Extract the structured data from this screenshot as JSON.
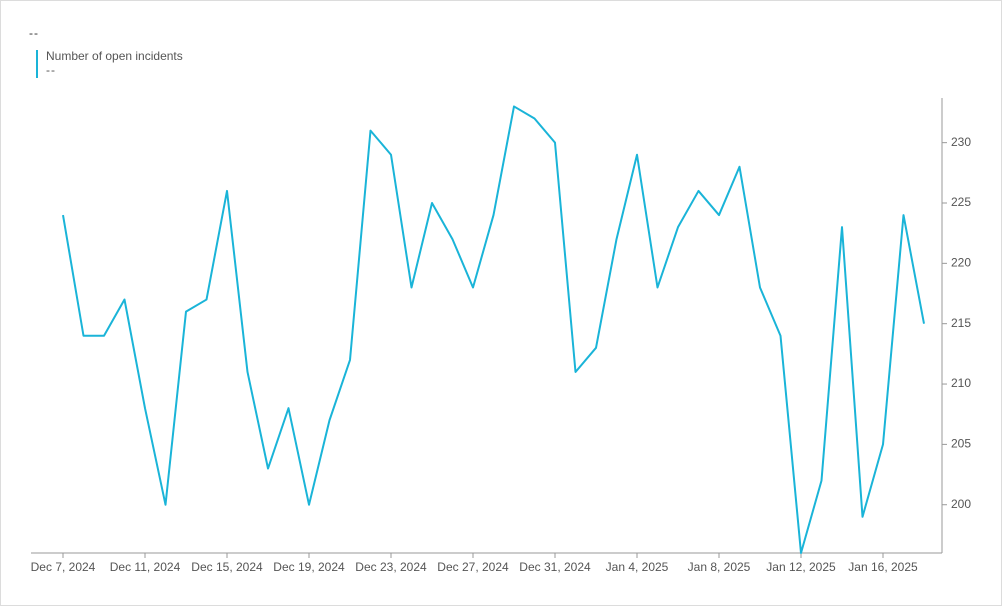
{
  "chart_data": {
    "type": "line",
    "title": "--",
    "x": [
      "2024-12-07",
      "2024-12-08",
      "2024-12-09",
      "2024-12-10",
      "2024-12-11",
      "2024-12-12",
      "2024-12-13",
      "2024-12-14",
      "2024-12-15",
      "2024-12-16",
      "2024-12-17",
      "2024-12-18",
      "2024-12-19",
      "2024-12-20",
      "2024-12-21",
      "2024-12-22",
      "2024-12-23",
      "2024-12-24",
      "2024-12-25",
      "2024-12-26",
      "2024-12-27",
      "2024-12-28",
      "2024-12-29",
      "2024-12-30",
      "2024-12-31",
      "2025-01-01",
      "2025-01-02",
      "2025-01-03",
      "2025-01-04",
      "2025-01-05",
      "2025-01-06",
      "2025-01-07",
      "2025-01-08",
      "2025-01-09",
      "2025-01-10",
      "2025-01-11",
      "2025-01-12",
      "2025-01-13",
      "2025-01-14",
      "2025-01-15",
      "2025-01-16",
      "2025-01-17",
      "2025-01-18"
    ],
    "series": [
      {
        "name": "Number of open incidents",
        "subtitle": "--",
        "color": "#1ab4d8",
        "values": [
          224,
          214,
          214,
          217,
          208,
          200,
          216,
          217,
          226,
          211,
          203,
          208,
          200,
          207,
          212,
          231,
          229,
          218,
          225,
          222,
          218,
          224,
          233,
          232,
          230,
          211,
          213,
          222,
          229,
          218,
          223,
          226,
          224,
          228,
          218,
          214,
          196,
          202,
          223,
          199,
          205,
          224,
          215
        ]
      }
    ],
    "xticks": [
      {
        "value": "2024-12-07",
        "label": "Dec 7, 2024"
      },
      {
        "value": "2024-12-11",
        "label": "Dec 11, 2024"
      },
      {
        "value": "2024-12-15",
        "label": "Dec 15, 2024"
      },
      {
        "value": "2024-12-19",
        "label": "Dec 19, 2024"
      },
      {
        "value": "2024-12-23",
        "label": "Dec 23, 2024"
      },
      {
        "value": "2024-12-27",
        "label": "Dec 27, 2024"
      },
      {
        "value": "2024-12-31",
        "label": "Dec 31, 2024"
      },
      {
        "value": "2025-01-04",
        "label": "Jan 4, 2025"
      },
      {
        "value": "2025-01-08",
        "label": "Jan 8, 2025"
      },
      {
        "value": "2025-01-12",
        "label": "Jan 12, 2025"
      },
      {
        "value": "2025-01-16",
        "label": "Jan 16, 2025"
      }
    ],
    "ylim": [
      196,
      233.7
    ],
    "yticks": [
      200,
      205,
      210,
      215,
      220,
      225,
      230
    ],
    "grid": false
  }
}
